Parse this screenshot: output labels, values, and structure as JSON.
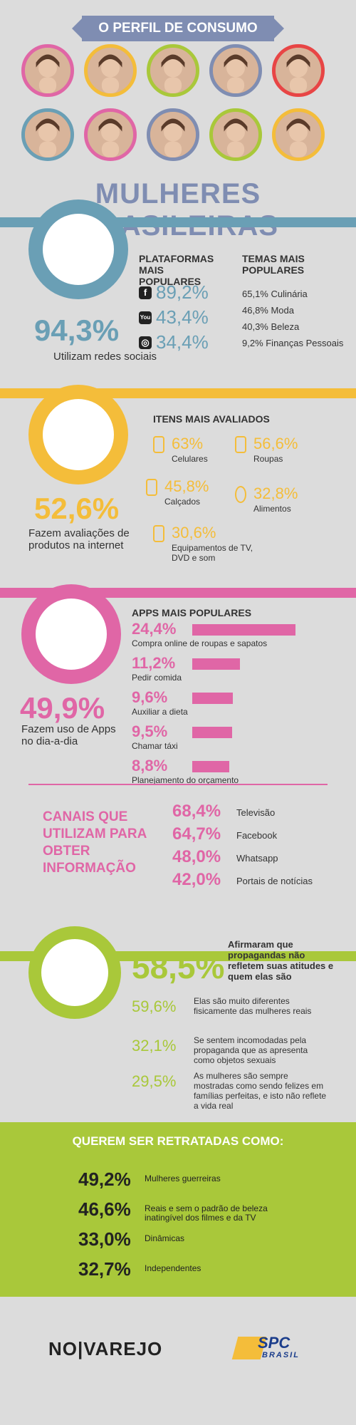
{
  "header": {
    "banner": "O PERFIL DE CONSUMO",
    "title": "MULHERES BRASILEIRAS"
  },
  "colors": {
    "blue": "#6a9fb5",
    "yellow": "#f4bd3a",
    "pink": "#e066a6",
    "green": "#a9c83a",
    "slate": "#7f8db2"
  },
  "portraits": {
    "row1": [
      "#e066a6",
      "#f4bd3a",
      "#a9c83a",
      "#7f8db2",
      "#e84545"
    ],
    "row2": [
      "#6a9fb5",
      "#e066a6",
      "#7f8db2",
      "#a9c83a",
      "#f4bd3a"
    ]
  },
  "social": {
    "main_pct": "94,3%",
    "main_text": "Utilizam redes sociais",
    "platforms_head": "PLATAFORMAS MAIS POPULARES",
    "platforms": [
      {
        "icon": "facebook-icon",
        "glyph": "f",
        "value": "89,2%"
      },
      {
        "icon": "youtube-icon",
        "glyph": "You",
        "value": "43,4%"
      },
      {
        "icon": "instagram-icon",
        "glyph": "◎",
        "value": "34,4%"
      }
    ],
    "topics_head": "TEMAS MAIS POPULARES",
    "topics": [
      "65,1% Culinária",
      "46,8% Moda",
      "40,3% Beleza",
      "9,2% Finanças Pessoais"
    ]
  },
  "reviews": {
    "main_pct": "52,6%",
    "main_text": "Fazem avaliações de produtos na internet",
    "head": "ITENS MAIS AVALIADOS",
    "items": [
      {
        "icon": "phone-icon",
        "value": "63%",
        "label": "Celulares"
      },
      {
        "icon": "dress-icon",
        "value": "56,6%",
        "label": "Roupas"
      },
      {
        "icon": "heel-icon",
        "value": "45,8%",
        "label": "Calçados"
      },
      {
        "icon": "apple-icon",
        "value": "32,8%",
        "label": "Alimentos"
      },
      {
        "icon": "tv-icon",
        "value": "30,6%",
        "label": "Equipamentos de TV, DVD e som"
      }
    ]
  },
  "apps": {
    "main_pct": "49,9%",
    "main_text": "Fazem uso de Apps no dia-a-dia",
    "head": "APPS MAIS POPULARES",
    "list": [
      {
        "value": "24,4%",
        "label": "Compra online de roupas e sapatos",
        "share": 0.244
      },
      {
        "value": "11,2%",
        "label": "Pedir comida",
        "share": 0.112
      },
      {
        "value": "9,6%",
        "label": "Auxiliar a dieta",
        "share": 0.096
      },
      {
        "value": "9,5%",
        "label": "Chamar táxi",
        "share": 0.095
      },
      {
        "value": "8,8%",
        "label": "Planejamento do orçamento",
        "share": 0.088
      }
    ]
  },
  "channels": {
    "head": "CANAIS QUE UTILIZAM PARA OBTER INFORMAÇÃO",
    "list": [
      {
        "value": "68,4%",
        "label": "Televisão"
      },
      {
        "value": "64,7%",
        "label": "Facebook"
      },
      {
        "value": "48,0%",
        "label": "Whatsapp"
      },
      {
        "value": "42,0%",
        "label": "Portais de notícias"
      }
    ]
  },
  "ads": {
    "main_pct": "58,5%",
    "main_text": "Afirmaram que propagandas não refletem suas atitudes e quem elas são",
    "list": [
      {
        "value": "59,6%",
        "label": "Elas são muito diferentes fisicamente das mulheres reais"
      },
      {
        "value": "32,1%",
        "label": "Se sentem incomodadas pela propaganda que as apresenta como objetos sexuais"
      },
      {
        "value": "29,5%",
        "label": "As mulheres são sempre mostradas como sendo felizes em famílias perfeitas, e isto não reflete a vida real"
      }
    ]
  },
  "portrayed": {
    "head": "QUEREM SER RETRATADAS COMO:",
    "list": [
      {
        "value": "49,2%",
        "label": "Mulheres guerreiras"
      },
      {
        "value": "46,6%",
        "label": "Reais e sem o padrão de beleza inatingível dos filmes e da TV"
      },
      {
        "value": "33,0%",
        "label": "Dinâmicas"
      },
      {
        "value": "32,7%",
        "label": "Independentes"
      }
    ]
  },
  "footer": {
    "logo_left": "NO|VAREJO",
    "logo_right_top": "SPC",
    "logo_right_bottom": "BRASIL"
  }
}
